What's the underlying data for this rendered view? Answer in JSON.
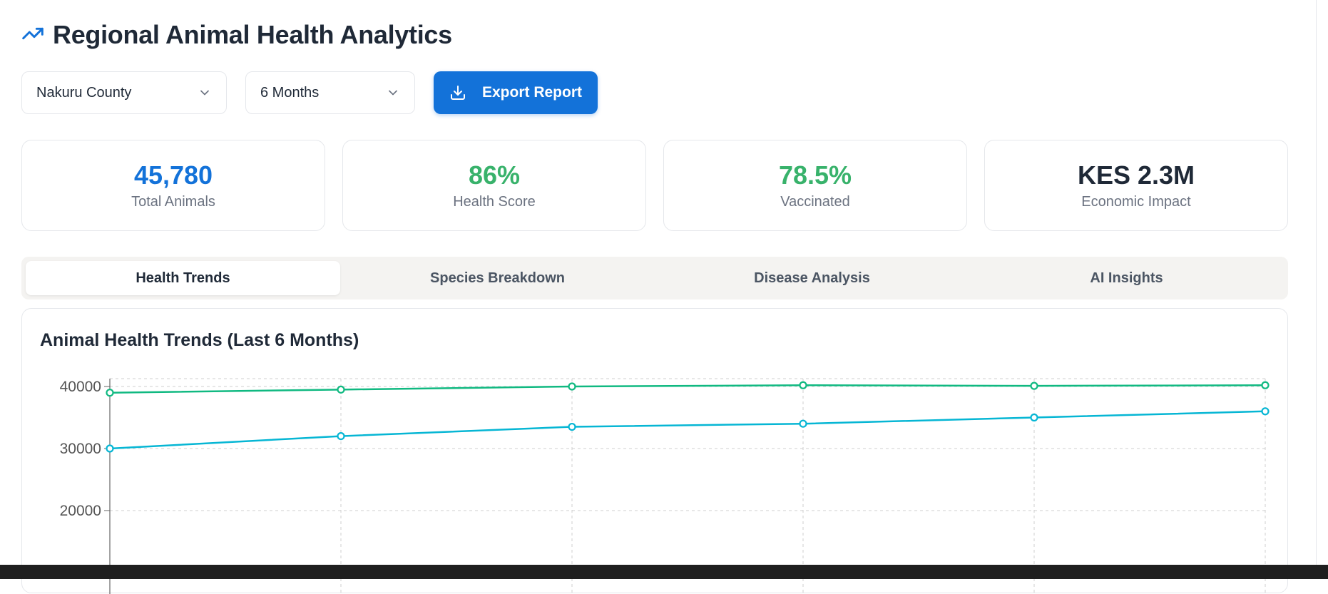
{
  "header": {
    "title": "Regional Animal Health Analytics",
    "icon": "trending-up-icon"
  },
  "filters": {
    "county": "Nakuru County",
    "period": "6 Months",
    "export_label": "Export Report"
  },
  "stats": [
    {
      "value": "45,780",
      "label": "Total Animals",
      "color": "#1372d9"
    },
    {
      "value": "86%",
      "label": "Health Score",
      "color": "#38b26b"
    },
    {
      "value": "78.5%",
      "label": "Vaccinated",
      "color": "#38b26b"
    },
    {
      "value": "KES 2.3M",
      "label": "Economic Impact",
      "color": "#1f2937"
    }
  ],
  "tabs": [
    {
      "label": "Health Trends",
      "active": true
    },
    {
      "label": "Species Breakdown",
      "active": false
    },
    {
      "label": "Disease Analysis",
      "active": false
    },
    {
      "label": "AI Insights",
      "active": false
    }
  ],
  "chart_card": {
    "title": "Animal Health Trends (Last 6 Months)"
  },
  "chart_data": {
    "type": "line",
    "title": "Animal Health Trends (Last 6 Months)",
    "x": [
      1,
      2,
      3,
      4,
      5,
      6
    ],
    "yticks": [
      20000,
      30000,
      40000
    ],
    "grid": true,
    "series": [
      {
        "values": [
          39000,
          39500,
          40000,
          40200,
          40100,
          40200
        ],
        "color": "#10b981"
      },
      {
        "values": [
          30000,
          32000,
          33500,
          34000,
          35000,
          36000
        ],
        "color": "#06b6d4"
      }
    ]
  }
}
